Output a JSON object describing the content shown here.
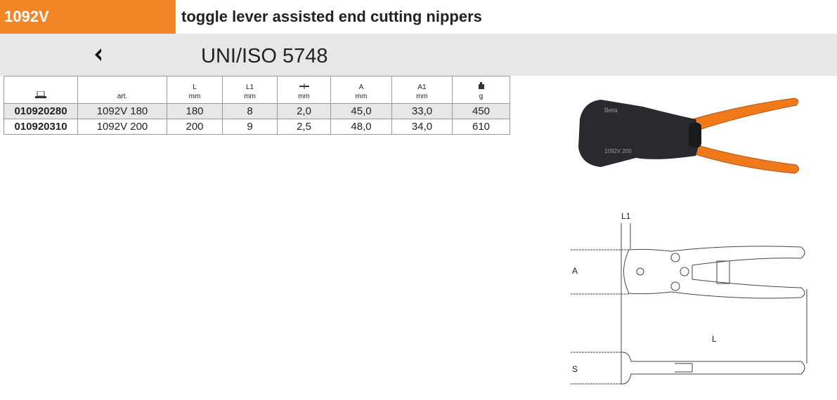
{
  "header": {
    "code": "1092V",
    "title": "toggle lever assisted end cutting nippers",
    "accent": "#f28526"
  },
  "standard": {
    "icon": "standard-mark-icon",
    "icon_glyph": "☇",
    "text": "UNI/ISO 5748"
  },
  "table": {
    "columns": [
      {
        "label": "",
        "unit": "",
        "icon": "product-code-icon"
      },
      {
        "label": "",
        "unit": "art."
      },
      {
        "label": "L",
        "unit": "mm"
      },
      {
        "label": "L1",
        "unit": "mm"
      },
      {
        "label": "",
        "unit": "mm",
        "icon": "wire-diameter-icon"
      },
      {
        "label": "A",
        "unit": "mm"
      },
      {
        "label": "A1",
        "unit": "mm"
      },
      {
        "label": "",
        "unit": "g",
        "icon": "weight-icon"
      }
    ],
    "rows": [
      [
        "010920280",
        "1092V 180",
        "180",
        "8",
        "2,0",
        "45,0",
        "33,0",
        "450"
      ],
      [
        "010920310",
        "1092V 200",
        "200",
        "9",
        "2,5",
        "48,0",
        "34,0",
        "610"
      ]
    ]
  },
  "drawing": {
    "labels": {
      "l1": "L1",
      "a": "A",
      "l": "L",
      "s": "S"
    }
  },
  "photo": {
    "brand": "Beta",
    "marking": "1092V 200"
  }
}
